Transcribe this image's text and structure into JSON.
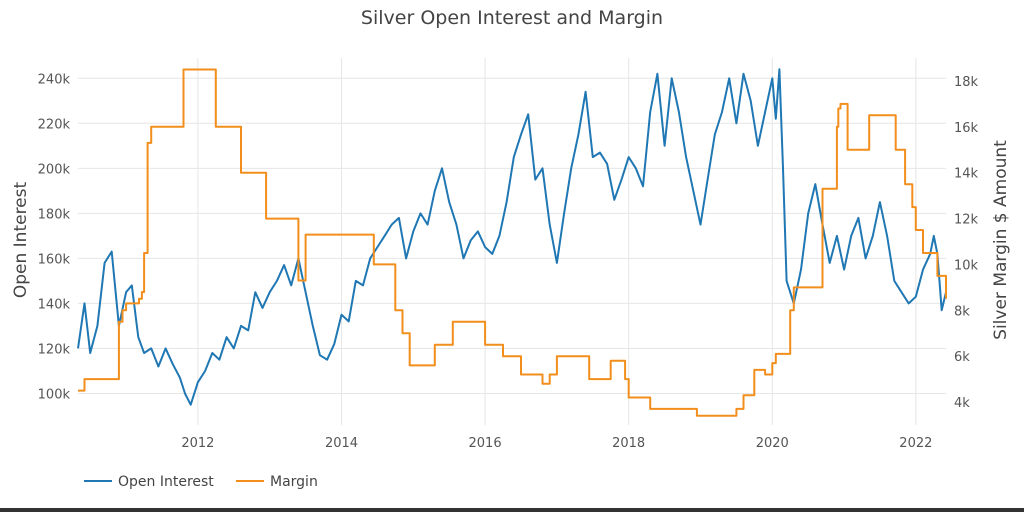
{
  "chart_data": {
    "type": "line",
    "title": "Silver Open Interest and Margin",
    "xlabel": "",
    "ylabel": "Open Interest",
    "y2label": "Silver Margin $ Amount",
    "xlim": [
      2010.33,
      2022.42
    ],
    "ylim": [
      86000,
      249000
    ],
    "y2lim": [
      3000,
      19000
    ],
    "x_ticks": [
      2012,
      2014,
      2016,
      2018,
      2020,
      2022
    ],
    "x_tick_labels": [
      "2012",
      "2014",
      "2016",
      "2018",
      "2020",
      "2022"
    ],
    "y_ticks": [
      100000,
      120000,
      140000,
      160000,
      180000,
      200000,
      220000,
      240000
    ],
    "y_tick_labels": [
      "100k",
      "120k",
      "140k",
      "160k",
      "180k",
      "200k",
      "220k",
      "240k"
    ],
    "y2_ticks": [
      4000,
      6000,
      8000,
      10000,
      12000,
      14000,
      16000,
      18000
    ],
    "y2_tick_labels": [
      "4k",
      "6k",
      "8k",
      "10k",
      "12k",
      "14k",
      "16k",
      "18k"
    ],
    "grid": true,
    "legend_position": "bottom-left",
    "series": [
      {
        "name": "Open Interest",
        "axis": "left",
        "color": "#1f77b4",
        "x": [
          2010.33,
          2010.42,
          2010.5,
          2010.6,
          2010.7,
          2010.8,
          2010.9,
          2011.0,
          2011.08,
          2011.17,
          2011.25,
          2011.35,
          2011.45,
          2011.55,
          2011.65,
          2011.75,
          2011.82,
          2011.9,
          2012.0,
          2012.1,
          2012.2,
          2012.3,
          2012.4,
          2012.5,
          2012.6,
          2012.7,
          2012.8,
          2012.9,
          2013.0,
          2013.1,
          2013.2,
          2013.3,
          2013.4,
          2013.5,
          2013.6,
          2013.7,
          2013.8,
          2013.9,
          2014.0,
          2014.1,
          2014.2,
          2014.3,
          2014.4,
          2014.5,
          2014.6,
          2014.7,
          2014.8,
          2014.9,
          2015.0,
          2015.1,
          2015.2,
          2015.3,
          2015.4,
          2015.5,
          2015.6,
          2015.7,
          2015.8,
          2015.9,
          2016.0,
          2016.1,
          2016.2,
          2016.3,
          2016.4,
          2016.5,
          2016.6,
          2016.7,
          2016.8,
          2016.9,
          2017.0,
          2017.1,
          2017.2,
          2017.3,
          2017.4,
          2017.5,
          2017.6,
          2017.7,
          2017.8,
          2017.9,
          2018.0,
          2018.1,
          2018.2,
          2018.3,
          2018.4,
          2018.5,
          2018.6,
          2018.7,
          2018.8,
          2018.9,
          2019.0,
          2019.1,
          2019.2,
          2019.3,
          2019.4,
          2019.5,
          2019.6,
          2019.7,
          2019.8,
          2019.9,
          2020.0,
          2020.05,
          2020.1,
          2020.15,
          2020.2,
          2020.3,
          2020.4,
          2020.5,
          2020.6,
          2020.7,
          2020.8,
          2020.9,
          2021.0,
          2021.1,
          2021.2,
          2021.3,
          2021.4,
          2021.5,
          2021.6,
          2021.7,
          2021.8,
          2021.9,
          2022.0,
          2022.1,
          2022.2,
          2022.25,
          2022.3,
          2022.36,
          2022.42
        ],
        "values": [
          120000,
          140000,
          118000,
          130000,
          158000,
          163000,
          130000,
          145000,
          148000,
          125000,
          118000,
          120000,
          112000,
          120000,
          113000,
          107000,
          100000,
          95000,
          105000,
          110000,
          118000,
          115000,
          125000,
          120000,
          130000,
          128000,
          145000,
          138000,
          145000,
          150000,
          157000,
          148000,
          160000,
          145000,
          130000,
          117000,
          115000,
          122000,
          135000,
          132000,
          150000,
          148000,
          160000,
          165000,
          170000,
          175000,
          178000,
          160000,
          172000,
          180000,
          175000,
          190000,
          200000,
          185000,
          175000,
          160000,
          168000,
          172000,
          165000,
          162000,
          170000,
          185000,
          205000,
          215000,
          224000,
          195000,
          200000,
          175000,
          158000,
          180000,
          200000,
          215000,
          234000,
          205000,
          207000,
          202000,
          186000,
          195000,
          205000,
          200000,
          192000,
          225000,
          242000,
          210000,
          240000,
          225000,
          205000,
          190000,
          175000,
          195000,
          215000,
          225000,
          240000,
          220000,
          242000,
          230000,
          210000,
          225000,
          240000,
          222000,
          244000,
          200000,
          150000,
          140000,
          155000,
          180000,
          193000,
          175000,
          158000,
          170000,
          155000,
          170000,
          178000,
          160000,
          170000,
          185000,
          170000,
          150000,
          145000,
          140000,
          143000,
          155000,
          162000,
          170000,
          162000,
          137000,
          145000
        ]
      },
      {
        "name": "Margin",
        "axis": "right",
        "color": "#f28e1c",
        "x": [
          2010.33,
          2010.35,
          2010.42,
          2010.5,
          2010.85,
          2010.9,
          2010.95,
          2011.0,
          2011.05,
          2011.15,
          2011.18,
          2011.22,
          2011.25,
          2011.3,
          2011.35,
          2011.6,
          2011.8,
          2012.1,
          2012.25,
          2012.45,
          2012.6,
          2012.9,
          2012.95,
          2013.2,
          2013.4,
          2013.5,
          2013.7,
          2014.15,
          2014.45,
          2014.65,
          2014.75,
          2014.85,
          2014.95,
          2015.1,
          2015.3,
          2015.45,
          2015.55,
          2015.65,
          2016.0,
          2016.25,
          2016.5,
          2016.65,
          2016.8,
          2016.85,
          2016.9,
          2017.0,
          2017.25,
          2017.45,
          2017.55,
          2017.75,
          2017.8,
          2017.85,
          2017.95,
          2018.0,
          2018.05,
          2018.3,
          2018.8,
          2018.95,
          2019.3,
          2019.5,
          2019.6,
          2019.75,
          2019.9,
          2020.0,
          2020.05,
          2020.2,
          2020.25,
          2020.3,
          2020.55,
          2020.6,
          2020.7,
          2020.9,
          2020.92,
          2020.95,
          2021.05,
          2021.3,
          2021.35,
          2021.55,
          2021.72,
          2021.85,
          2021.95,
          2022.0,
          2022.1,
          2022.3,
          2022.35,
          2022.42
        ],
        "values": [
          4500,
          4500,
          5000,
          5000,
          5000,
          7500,
          8000,
          8300,
          8300,
          8300,
          8500,
          8800,
          10500,
          15300,
          16000,
          16000,
          18500,
          18500,
          16000,
          16000,
          14000,
          14000,
          12000,
          12000,
          9300,
          11300,
          11300,
          11300,
          10000,
          10000,
          8000,
          7000,
          5600,
          5600,
          6500,
          6500,
          7500,
          7500,
          6500,
          6000,
          5200,
          5200,
          4800,
          4800,
          5200,
          6000,
          6000,
          5000,
          5000,
          5800,
          5800,
          5800,
          5000,
          4200,
          4200,
          3700,
          3700,
          3400,
          3400,
          3700,
          4300,
          5400,
          5200,
          5700,
          6100,
          6100,
          8000,
          9000,
          9000,
          9000,
          13300,
          16000,
          16800,
          17000,
          15000,
          15000,
          16500,
          16500,
          15000,
          13500,
          12500,
          11500,
          10500,
          9500,
          9500,
          8500
        ]
      }
    ]
  }
}
